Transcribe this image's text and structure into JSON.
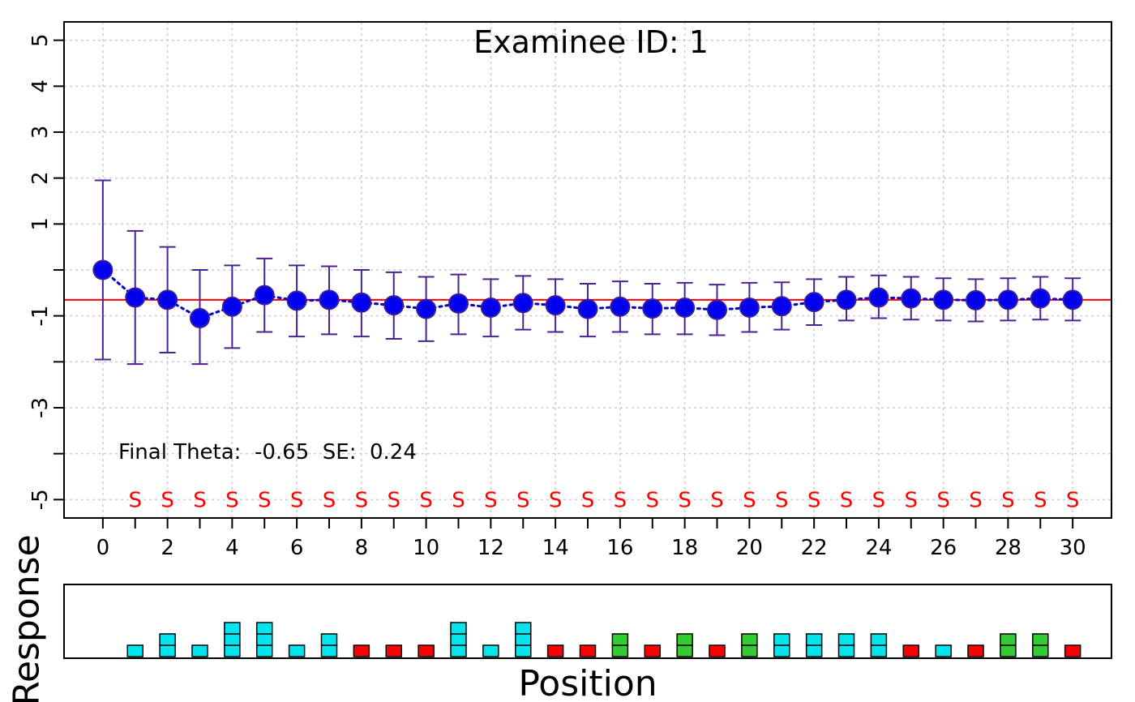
{
  "chart_data": {
    "type": "line",
    "title": "Examinee ID: 1",
    "annotation": "Final Theta:  -0.65  SE:  0.24",
    "x": [
      0,
      1,
      2,
      3,
      4,
      5,
      6,
      7,
      8,
      9,
      10,
      11,
      12,
      13,
      14,
      15,
      16,
      17,
      18,
      19,
      20,
      21,
      22,
      23,
      24,
      25,
      26,
      27,
      28,
      29,
      30
    ],
    "x_tick_labels": [
      "0",
      "2",
      "4",
      "6",
      "8",
      "10",
      "12",
      "14",
      "16",
      "18",
      "20",
      "22",
      "24",
      "26",
      "28",
      "30"
    ],
    "y_tick_labels": [
      {
        "value": 5,
        "label": "5"
      },
      {
        "value": 4,
        "label": "4"
      },
      {
        "value": 3,
        "label": "3"
      },
      {
        "value": 2,
        "label": "2"
      },
      {
        "value": 1,
        "label": "1"
      },
      {
        "value": -1,
        "label": "-1"
      },
      {
        "value": -3,
        "label": "-3"
      },
      {
        "value": -5,
        "label": "-5"
      }
    ],
    "y_ticks": [
      5,
      4,
      3,
      2,
      1,
      0,
      -1,
      -2,
      -3,
      -4,
      -5
    ],
    "ylim": [
      -5.4,
      5.4
    ],
    "xlim": [
      -1.2,
      31.2
    ],
    "grid": true,
    "theta": [
      0,
      -0.6,
      -0.65,
      -1.05,
      -0.8,
      -0.55,
      -0.67,
      -0.65,
      -0.71,
      -0.77,
      -0.85,
      -0.73,
      -0.82,
      -0.72,
      -0.77,
      -0.85,
      -0.8,
      -0.84,
      -0.82,
      -0.87,
      -0.82,
      -0.79,
      -0.7,
      -0.65,
      -0.6,
      -0.62,
      -0.65,
      -0.66,
      -0.65,
      -0.62,
      -0.65
    ],
    "upper": [
      1.95,
      0.85,
      0.5,
      0,
      0.1,
      0.25,
      0.1,
      0.08,
      0,
      -0.05,
      -0.15,
      -0.1,
      -0.2,
      -0.13,
      -0.2,
      -0.3,
      -0.25,
      -0.3,
      -0.28,
      -0.32,
      -0.28,
      -0.27,
      -0.2,
      -0.15,
      -0.12,
      -0.15,
      -0.18,
      -0.2,
      -0.18,
      -0.15,
      -0.18
    ],
    "lower": [
      -1.95,
      -2.05,
      -1.8,
      -2.05,
      -1.7,
      -1.35,
      -1.45,
      -1.4,
      -1.45,
      -1.5,
      -1.55,
      -1.4,
      -1.45,
      -1.3,
      -1.35,
      -1.45,
      -1.35,
      -1.4,
      -1.4,
      -1.42,
      -1.35,
      -1.3,
      -1.2,
      -1.1,
      -1.05,
      -1.08,
      -1.1,
      -1.12,
      -1.1,
      -1.08,
      -1.1
    ],
    "final_theta_line": -0.65,
    "item_labels": [
      "S",
      "S",
      "S",
      "S",
      "S",
      "S",
      "S",
      "S",
      "S",
      "S",
      "S",
      "S",
      "S",
      "S",
      "S",
      "S",
      "S",
      "S",
      "S",
      "S",
      "S",
      "S",
      "S",
      "S",
      "S",
      "S",
      "S",
      "S",
      "S",
      "S"
    ],
    "item_label_y": -5,
    "responses": [
      {
        "position": 1,
        "value": 1,
        "color": "cyan"
      },
      {
        "position": 2,
        "value": 2,
        "color": "cyan"
      },
      {
        "position": 3,
        "value": 1,
        "color": "cyan"
      },
      {
        "position": 4,
        "value": 3,
        "color": "cyan"
      },
      {
        "position": 5,
        "value": 3,
        "color": "cyan"
      },
      {
        "position": 6,
        "value": 1,
        "color": "cyan"
      },
      {
        "position": 7,
        "value": 2,
        "color": "cyan"
      },
      {
        "position": 8,
        "value": 1,
        "color": "red"
      },
      {
        "position": 9,
        "value": 1,
        "color": "red"
      },
      {
        "position": 10,
        "value": 1,
        "color": "red"
      },
      {
        "position": 11,
        "value": 3,
        "color": "cyan"
      },
      {
        "position": 12,
        "value": 1,
        "color": "cyan"
      },
      {
        "position": 13,
        "value": 3,
        "color": "cyan"
      },
      {
        "position": 14,
        "value": 1,
        "color": "red"
      },
      {
        "position": 15,
        "value": 1,
        "color": "red"
      },
      {
        "position": 16,
        "value": 2,
        "color": "green"
      },
      {
        "position": 17,
        "value": 1,
        "color": "red"
      },
      {
        "position": 18,
        "value": 2,
        "color": "green"
      },
      {
        "position": 19,
        "value": 1,
        "color": "red"
      },
      {
        "position": 20,
        "value": 2,
        "color": "green"
      },
      {
        "position": 21,
        "value": 2,
        "color": "cyan"
      },
      {
        "position": 22,
        "value": 2,
        "color": "cyan"
      },
      {
        "position": 23,
        "value": 2,
        "color": "cyan"
      },
      {
        "position": 24,
        "value": 2,
        "color": "cyan"
      },
      {
        "position": 25,
        "value": 1,
        "color": "red"
      },
      {
        "position": 26,
        "value": 1,
        "color": "cyan"
      },
      {
        "position": 27,
        "value": 1,
        "color": "red"
      },
      {
        "position": 28,
        "value": 2,
        "color": "green"
      },
      {
        "position": 29,
        "value": 2,
        "color": "green"
      },
      {
        "position": 30,
        "value": 1,
        "color": "red"
      }
    ],
    "colors": {
      "point_fill": "#0000ee",
      "point_stroke": "#3a1f9c",
      "path_line": "#0000cc",
      "error_bar": "#4b2390",
      "final_line": "#ff0000",
      "item_label": "#ff0000",
      "grid": "#cccccc",
      "cyan": "#00e5ee",
      "red": "#ff0000",
      "green": "#33cc33"
    },
    "xlabel": "Position",
    "ylabel": "Response"
  }
}
